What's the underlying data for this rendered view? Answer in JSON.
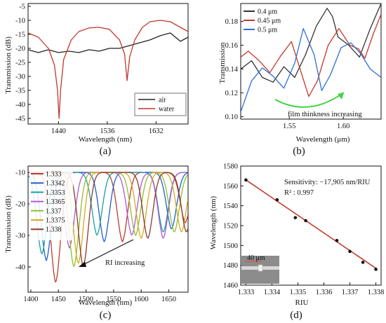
{
  "chart_data": [
    {
      "type": "line",
      "panel_label": "(a)",
      "xlabel": "Wavelength (nm)",
      "ylabel": "Transmission (dB)",
      "xlim": [
        1380,
        1695
      ],
      "ylim": [
        -47,
        -4
      ],
      "xticks": [
        1440,
        1536,
        1632
      ],
      "yticks": [
        -45,
        -40,
        -35,
        -30,
        -25,
        -20,
        -15,
        -10,
        -5
      ],
      "legend_position": "bottom-right",
      "series": [
        {
          "name": "air",
          "color": "#222222",
          "x": [
            1380,
            1400,
            1420,
            1440,
            1460,
            1480,
            1500,
            1520,
            1540,
            1560,
            1580,
            1600,
            1620,
            1640,
            1660,
            1680,
            1695
          ],
          "y": [
            -20.5,
            -21.5,
            -20.5,
            -21.5,
            -21,
            -21.5,
            -20.5,
            -21,
            -20,
            -20,
            -19,
            -18,
            -17,
            -15.5,
            -14.5,
            -17.5,
            -16
          ]
        },
        {
          "name": "water",
          "color": "#c0392b",
          "x": [
            1380,
            1400,
            1420,
            1432,
            1438,
            1441,
            1444,
            1450,
            1465,
            1480,
            1500,
            1520,
            1540,
            1560,
            1570,
            1575,
            1580,
            1590,
            1605,
            1620,
            1640,
            1660,
            1680,
            1695
          ],
          "y": [
            -14.5,
            -16,
            -20,
            -26,
            -35,
            -45,
            -35,
            -24,
            -17,
            -14,
            -12.7,
            -12.5,
            -13.2,
            -17,
            -22,
            -31.5,
            -23,
            -17,
            -12.5,
            -10.5,
            -10,
            -10.5,
            -12.5,
            -14
          ]
        }
      ]
    },
    {
      "type": "line",
      "panel_label": "(b)",
      "xlabel": "Wavelength (μm)",
      "ylabel": "Transmission",
      "xlim": [
        1.505,
        1.635
      ],
      "ylim": [
        0.098,
        0.195
      ],
      "xticks": [
        1.55,
        1.6
      ],
      "yticks": [
        0.1,
        0.12,
        0.14,
        0.16,
        0.18
      ],
      "legend_position": "top-left",
      "annotation": "film thinkness increasing",
      "series": [
        {
          "name": "0.4 μm",
          "color": "#333333",
          "x": [
            1.505,
            1.515,
            1.525,
            1.535,
            1.545,
            1.555,
            1.565,
            1.575,
            1.585,
            1.59,
            1.595,
            1.605,
            1.615,
            1.625,
            1.635
          ],
          "y": [
            0.14,
            0.147,
            0.133,
            0.129,
            0.142,
            0.133,
            0.152,
            0.176,
            0.191,
            0.184,
            0.167,
            0.16,
            0.15,
            0.174,
            0.195
          ]
        },
        {
          "name": "0.45 μm",
          "color": "#c0392b",
          "x": [
            1.505,
            1.512,
            1.522,
            1.532,
            1.542,
            1.552,
            1.56,
            1.568,
            1.576,
            1.586,
            1.596,
            1.606,
            1.614,
            1.62,
            1.628,
            1.635
          ],
          "y": [
            0.15,
            0.155,
            0.147,
            0.137,
            0.151,
            0.163,
            0.14,
            0.117,
            0.13,
            0.16,
            0.174,
            0.16,
            0.157,
            0.149,
            0.17,
            0.186
          ]
        },
        {
          "name": "0.5 μm",
          "color": "#2e6fd8",
          "x": [
            1.505,
            1.515,
            1.525,
            1.535,
            1.545,
            1.555,
            1.563,
            1.573,
            1.58,
            1.588,
            1.598,
            1.607,
            1.616,
            1.625,
            1.635
          ],
          "y": [
            0.104,
            0.13,
            0.141,
            0.134,
            0.124,
            0.145,
            0.174,
            0.152,
            0.122,
            0.135,
            0.158,
            0.162,
            0.153,
            0.14,
            0.133
          ]
        }
      ]
    },
    {
      "type": "line",
      "panel_label": "(c)",
      "xlabel": "Wavelength (nm)",
      "ylabel": "Transmission (dB)",
      "xlim": [
        1395,
        1685
      ],
      "ylim": [
        -48,
        -8
      ],
      "xticks": [
        1400,
        1450,
        1500,
        1550,
        1600,
        1650
      ],
      "yticks": [
        -40,
        -30,
        -20,
        -10
      ],
      "legend_position": "top-left",
      "annotation": "RI increasing",
      "series": [
        {
          "name": "1.333",
          "color": "#c0392b",
          "dips": [
            1445,
            1566,
            1680
          ],
          "depths": [
            -45,
            -32,
            -26
          ]
        },
        {
          "name": "1.3342",
          "color": "#1f5fd0",
          "dips": [
            1428,
            1533,
            1655
          ],
          "depths": [
            -38,
            -32,
            -28
          ]
        },
        {
          "name": "1.3353",
          "color": "#18a0a0",
          "dips": [
            1420,
            1520,
            1640
          ],
          "depths": [
            -36,
            -30,
            -29
          ]
        },
        {
          "name": "1.3365",
          "color": "#b157d6",
          "dips": [
            1470,
            1583,
            1640
          ],
          "depths": [
            -34,
            -30,
            -31
          ]
        },
        {
          "name": "1.337",
          "color": "#8fbf2a",
          "dips": [
            1478,
            1590,
            1660
          ],
          "depths": [
            -40,
            -30,
            -29
          ]
        },
        {
          "name": "1.3375",
          "color": "#d9a81f",
          "dips": [
            1486,
            1600,
            1673
          ],
          "depths": [
            -39,
            -31,
            -29
          ]
        },
        {
          "name": "1.338",
          "color": "#8a3b2a",
          "dips": [
            1495,
            1612,
            1682
          ],
          "depths": [
            -40,
            -31,
            -29
          ]
        }
      ]
    },
    {
      "type": "scatter",
      "panel_label": "(d)",
      "xlabel": "RIU",
      "ylabel": "Wavelength (nm)",
      "xlim": [
        1.3328,
        1.3382
      ],
      "ylim": [
        1460,
        1580
      ],
      "xticks": [
        1.333,
        1.334,
        1.335,
        1.336,
        1.337,
        1.338
      ],
      "yticks": [
        1460,
        1480,
        1500,
        1520,
        1540,
        1560,
        1580
      ],
      "sensitivity_text": "Sensitivity: −17,905 nm/RIU",
      "r2_text": "R² : 0.997",
      "inset_label": "40 μm",
      "fit": {
        "x": [
          1.333,
          1.338
        ],
        "y": [
          1566,
          1477
        ],
        "color": "#c0392b"
      },
      "points": {
        "x": [
          1.333,
          1.3342,
          1.3349,
          1.3353,
          1.3365,
          1.337,
          1.3375,
          1.338
        ],
        "y": [
          1566,
          1546,
          1528,
          1525,
          1505,
          1494,
          1483,
          1476
        ],
        "color": "#111111"
      }
    }
  ]
}
